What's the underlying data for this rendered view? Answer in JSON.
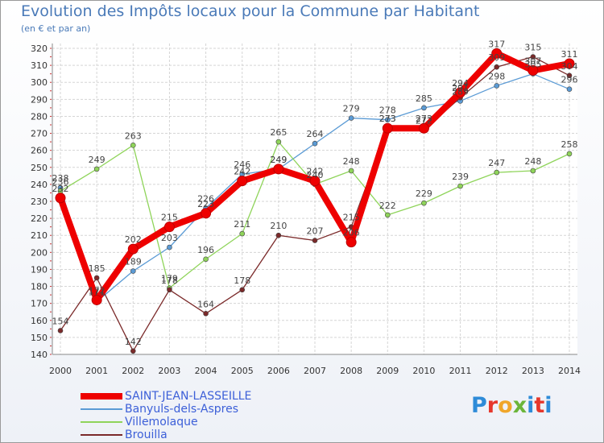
{
  "header": {
    "title": "Evolution des Impôts locaux pour la Commune par Habitant",
    "subtitle": "(en € et par an)"
  },
  "logo": {
    "text": "Proxiti"
  },
  "chart_data": {
    "type": "line",
    "title": "Evolution des Impôts locaux pour la Commune par Habitant",
    "subtitle": "(en € et par an)",
    "xlabel": "",
    "ylabel": "",
    "x": [
      "2000",
      "2001",
      "2002",
      "2003",
      "2004",
      "2005",
      "2006",
      "2007",
      "2008",
      "2009",
      "2010",
      "2011",
      "2012",
      "2013",
      "2014"
    ],
    "ylim": [
      140,
      320
    ],
    "yticks": [
      140,
      150,
      160,
      170,
      180,
      190,
      200,
      210,
      220,
      230,
      240,
      250,
      260,
      270,
      280,
      290,
      300,
      310,
      320
    ],
    "grid": true,
    "legend_position": "bottom-left",
    "series": [
      {
        "name": "SAINT-JEAN-LASSEILLE",
        "color": "#ee0000",
        "values": [
          232,
          172,
          202,
          215,
          223,
          242,
          249,
          242,
          206,
          273,
          273,
          294,
          317,
          307,
          311
        ]
      },
      {
        "name": "Banyuls-dels-Aspres",
        "color": "#5b9bd5",
        "values": [
          238,
          171,
          189,
          203,
          226,
          246,
          249,
          264,
          279,
          278,
          285,
          289,
          298,
          305,
          296
        ]
      },
      {
        "name": "Villemolaque",
        "color": "#8fd45a",
        "values": [
          236,
          249,
          263,
          179,
          196,
          211,
          265,
          240,
          248,
          222,
          229,
          239,
          247,
          248,
          258
        ]
      },
      {
        "name": "Brouilla",
        "color": "#7b2a2a",
        "values": [
          154,
          185,
          142,
          178,
          164,
          178,
          210,
          207,
          215,
          273,
          272,
          291,
          309,
          315,
          304
        ]
      }
    ]
  }
}
